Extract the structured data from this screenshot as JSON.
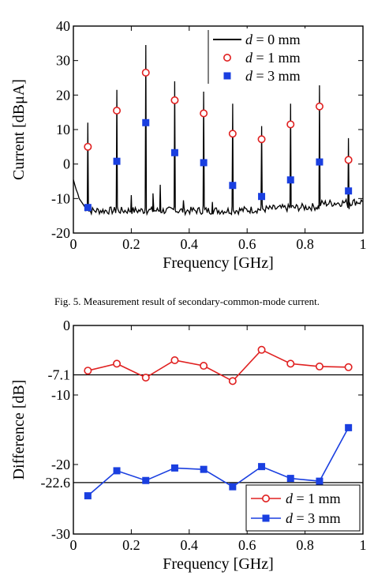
{
  "caption": "Fig. 5.    Measurement result of secondary-common-mode current.",
  "chart_data": [
    {
      "type": "line",
      "xlabel": "Frequency [GHz]",
      "ylabel": "Current [dBμA]",
      "xlim": [
        0,
        1
      ],
      "ylim": [
        -20,
        40
      ],
      "xticks": [
        0,
        0.2,
        0.4,
        0.6,
        0.8,
        1
      ],
      "yticks": [
        -20,
        -10,
        0,
        10,
        20,
        30,
        40
      ],
      "xtick_labels": [
        "0",
        "0.2",
        "0.4",
        "0.6",
        "0.8",
        "1"
      ],
      "ytick_labels": [
        "-20",
        "-10",
        "0",
        "10",
        "20",
        "30",
        "40"
      ],
      "legend_position": "top-right",
      "legend": [
        {
          "italic": "d",
          "text": " = 0 mm"
        },
        {
          "italic": "d",
          "text": " = 1 mm"
        },
        {
          "italic": "d",
          "text": " = 3 mm"
        }
      ],
      "noise_floor_approx": -13.5,
      "series": [
        {
          "style": "solid-line",
          "color": "#000000",
          "peaks_x": [
            0.05,
            0.15,
            0.25,
            0.35,
            0.45,
            0.55,
            0.65,
            0.75,
            0.85,
            0.95
          ],
          "peaks_y": [
            12,
            21.5,
            34.5,
            24,
            21,
            17.5,
            11,
            17.5,
            23,
            7.5
          ]
        },
        {
          "style": "open-circle",
          "color": "#e02020",
          "x": [
            0.05,
            0.15,
            0.25,
            0.35,
            0.45,
            0.55,
            0.65,
            0.75,
            0.85,
            0.95
          ],
          "y": [
            5,
            15.5,
            26.5,
            18.5,
            14.7,
            8.8,
            7.2,
            11.5,
            16.7,
            1.2
          ]
        },
        {
          "style": "filled-square",
          "color": "#1a3fe0",
          "x": [
            0.05,
            0.15,
            0.25,
            0.35,
            0.45,
            0.55,
            0.65,
            0.75,
            0.85,
            0.95
          ],
          "y": [
            -12.6,
            0.8,
            12,
            3.3,
            0.4,
            -6.2,
            -9.4,
            -4.6,
            0.6,
            -7.8
          ]
        }
      ]
    },
    {
      "type": "line",
      "xlabel": "Frequency [GHz]",
      "ylabel": "Difference [dB]",
      "xlim": [
        0,
        1
      ],
      "ylim": [
        -30,
        0
      ],
      "xticks": [
        0,
        0.2,
        0.4,
        0.6,
        0.8,
        1
      ],
      "yticks": [
        -30,
        -20,
        -10,
        0
      ],
      "xtick_labels": [
        "0",
        "0.2",
        "0.4",
        "0.6",
        "0.8",
        "1"
      ],
      "ytick_labels": [
        "-30",
        "-20",
        "-10",
        "0"
      ],
      "reference_lines": [
        {
          "y": -7.1,
          "label": "-7.1"
        },
        {
          "y": -22.6,
          "label": "-22.6"
        }
      ],
      "legend_position": "bottom-right",
      "legend": [
        {
          "italic": "d",
          "text": " = 1 mm"
        },
        {
          "italic": "d",
          "text": " = 3 mm"
        }
      ],
      "series": [
        {
          "style": "open-circle-line",
          "color": "#e02020",
          "x": [
            0.05,
            0.15,
            0.25,
            0.35,
            0.45,
            0.55,
            0.65,
            0.75,
            0.85,
            0.95
          ],
          "y": [
            -6.5,
            -5.5,
            -7.5,
            -5.0,
            -5.8,
            -8.0,
            -3.5,
            -5.5,
            -5.9,
            -6.0
          ]
        },
        {
          "style": "filled-square-line",
          "color": "#1a3fe0",
          "x": [
            0.05,
            0.15,
            0.25,
            0.35,
            0.45,
            0.55,
            0.65,
            0.75,
            0.85,
            0.95
          ],
          "y": [
            -24.5,
            -20.9,
            -22.3,
            -20.5,
            -20.7,
            -23.2,
            -20.3,
            -22.0,
            -22.4,
            -14.7
          ]
        }
      ]
    }
  ]
}
